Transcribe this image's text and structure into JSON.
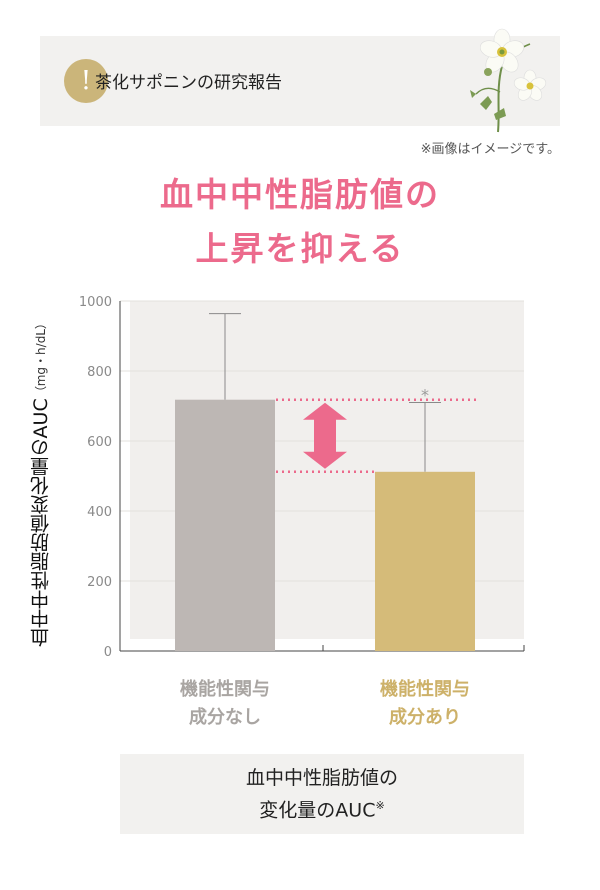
{
  "banner": {
    "badge": "!",
    "title": "茶化サポニンの研究報告"
  },
  "note": "※画像はイメージです。",
  "headline": {
    "line1": "血中中性脂肪値の",
    "line2": "上昇を抑える"
  },
  "footer": {
    "line1": "血中中性脂肪値の",
    "line2": "変化量のAUC",
    "mark": "※"
  },
  "colors": {
    "accent": "#ec6a8c",
    "gold": "#cbb57a",
    "bar_control": "#bdb7b4",
    "bar_test": "#d5bb79"
  },
  "chart_data": {
    "type": "bar",
    "ylabel": "血中中性脂肪値変化量のAUC",
    "yunit": "（mg・h/dL）",
    "categories": [
      "機能性関与成分なし",
      "機能性関与成分あり"
    ],
    "category_lines": [
      [
        "機能性関与",
        "成分なし"
      ],
      [
        "機能性関与",
        "成分あり"
      ]
    ],
    "values": [
      718,
      512
    ],
    "errors": [
      246,
      198
    ],
    "yticks": [
      0,
      200,
      400,
      600,
      800,
      1000
    ],
    "ylim": [
      0,
      1000
    ],
    "significance": "*",
    "grid": true
  }
}
